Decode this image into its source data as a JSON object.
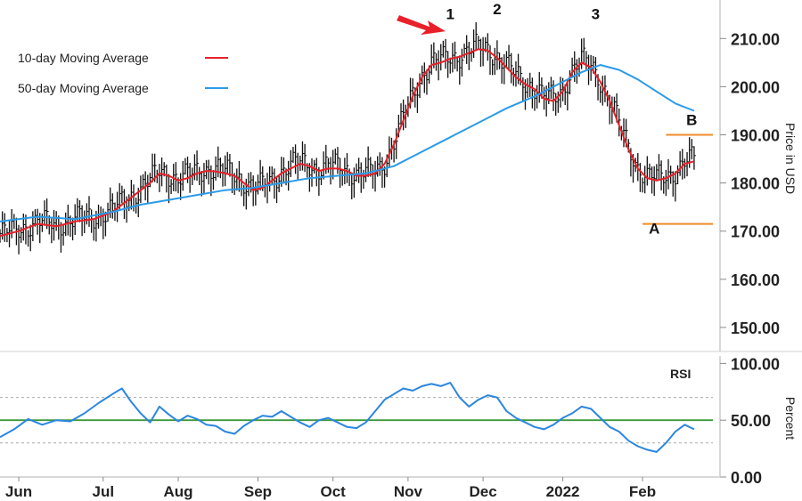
{
  "chart_data": [
    {
      "type": "line",
      "title": "",
      "ylabel": "Price in USD",
      "ylim": [
        145,
        218
      ],
      "yticks": [
        "210.00",
        "200.00",
        "190.00",
        "180.00",
        "170.00",
        "160.00",
        "150.00"
      ],
      "xticks": [
        "Jun",
        "Jul",
        "Aug",
        "Sep",
        "Oct",
        "Nov",
        "Dec",
        "2022",
        "Feb"
      ],
      "legend": "top-left",
      "series": [
        {
          "name": "10-day Moving Average",
          "color": "#e8202a",
          "points": [
            [
              0,
              169
            ],
            [
              4,
              170
            ],
            [
              8,
              171.5
            ],
            [
              12,
              171
            ],
            [
              16,
              172
            ],
            [
              20,
              172.5
            ],
            [
              24,
              174
            ],
            [
              28,
              177
            ],
            [
              32,
              180
            ],
            [
              34,
              182
            ],
            [
              36,
              181.5
            ],
            [
              38,
              180.5
            ],
            [
              40,
              181
            ],
            [
              42,
              182
            ],
            [
              44,
              182.5
            ],
            [
              46,
              182.4
            ],
            [
              48,
              182
            ],
            [
              50,
              181.5
            ],
            [
              52,
              180
            ],
            [
              54,
              178.5
            ],
            [
              56,
              179
            ],
            [
              58,
              180.5
            ],
            [
              60,
              182
            ],
            [
              62,
              183
            ],
            [
              64,
              184
            ],
            [
              66,
              183.5
            ],
            [
              68,
              182.5
            ],
            [
              70,
              183
            ],
            [
              72,
              183
            ],
            [
              74,
              182.5
            ],
            [
              76,
              181.5
            ],
            [
              78,
              181.5
            ],
            [
              80,
              182
            ],
            [
              82,
              184
            ],
            [
              84,
              188
            ],
            [
              86,
              193
            ],
            [
              88,
              198
            ],
            [
              90,
              202
            ],
            [
              92,
              204.5
            ],
            [
              94,
              205
            ],
            [
              96,
              205.8
            ],
            [
              98,
              206.2
            ],
            [
              100,
              207
            ],
            [
              102,
              207.8
            ],
            [
              104,
              207.5
            ],
            [
              106,
              206
            ],
            [
              108,
              204
            ],
            [
              110,
              202
            ],
            [
              112,
              200.5
            ],
            [
              114,
              199.5
            ],
            [
              116,
              197.5
            ],
            [
              118,
              197
            ],
            [
              120,
              199
            ],
            [
              122,
              203
            ],
            [
              124,
              205
            ],
            [
              126,
              204
            ],
            [
              128,
              201
            ],
            [
              130,
              197
            ],
            [
              132,
              192
            ],
            [
              134,
              187
            ],
            [
              136,
              183
            ],
            [
              138,
              181
            ],
            [
              140,
              180.5
            ],
            [
              142,
              181
            ],
            [
              144,
              182
            ],
            [
              146,
              184
            ],
            [
              148,
              184.5
            ]
          ]
        },
        {
          "name": "50-day Moving Average",
          "color": "#2b9be8",
          "points": [
            [
              0,
              172
            ],
            [
              8,
              173
            ],
            [
              16,
              172.5
            ],
            [
              24,
              174
            ],
            [
              30,
              175.5
            ],
            [
              36,
              176.5
            ],
            [
              42,
              177.5
            ],
            [
              48,
              178.5
            ],
            [
              54,
              179
            ],
            [
              60,
              180
            ],
            [
              66,
              181
            ],
            [
              72,
              181.5
            ],
            [
              78,
              182
            ],
            [
              84,
              183.5
            ],
            [
              90,
              186.5
            ],
            [
              96,
              189.5
            ],
            [
              102,
              192.5
            ],
            [
              108,
              195.5
            ],
            [
              114,
              198
            ],
            [
              120,
              201
            ],
            [
              124,
              203
            ],
            [
              128,
              204.5
            ],
            [
              132,
              203.5
            ],
            [
              136,
              201.5
            ],
            [
              140,
              199
            ],
            [
              144,
              196.5
            ],
            [
              148,
              195
            ]
          ]
        }
      ],
      "annotations": [
        {
          "label": "1",
          "x": 96,
          "y": 214
        },
        {
          "label": "2",
          "x": 106,
          "y": 215
        },
        {
          "label": "3",
          "x": 127,
          "y": 214
        },
        {
          "label": "A",
          "x": 139.5,
          "y": 169.5
        },
        {
          "label": "B",
          "x": 147.5,
          "y": 192
        }
      ],
      "reference_lines": [
        {
          "y": 190,
          "x_from": 142,
          "x_to": 152,
          "color": "#f08c2a"
        },
        {
          "y": 171.5,
          "x_from": 137,
          "x_to": 152,
          "color": "#f08c2a"
        }
      ],
      "arrow": {
        "x": 95,
        "y": 211.5,
        "color": "#e8202a"
      }
    },
    {
      "type": "line",
      "title": "RSI",
      "ylabel": "Percent",
      "ylim": [
        0,
        105
      ],
      "yticks": [
        "100.00",
        "50.00",
        "0.00"
      ],
      "reference_lines": [
        {
          "y": 50,
          "color": "#3a9a3a"
        },
        {
          "y": 70,
          "color": "#aaaaaa"
        },
        {
          "y": 30,
          "color": "#aaaaaa"
        }
      ],
      "series": [
        {
          "name": "RSI",
          "color": "#2b86e0",
          "points": [
            [
              0,
              35
            ],
            [
              3,
              42
            ],
            [
              6,
              51
            ],
            [
              9,
              46
            ],
            [
              12,
              50
            ],
            [
              15,
              49
            ],
            [
              18,
              56
            ],
            [
              21,
              65
            ],
            [
              24,
              73
            ],
            [
              26,
              78
            ],
            [
              28,
              66
            ],
            [
              30,
              56
            ],
            [
              32,
              48
            ],
            [
              34,
              62
            ],
            [
              36,
              55
            ],
            [
              38,
              49
            ],
            [
              40,
              54
            ],
            [
              42,
              51
            ],
            [
              44,
              46
            ],
            [
              46,
              45
            ],
            [
              48,
              40
            ],
            [
              50,
              38
            ],
            [
              52,
              45
            ],
            [
              54,
              50
            ],
            [
              56,
              54
            ],
            [
              58,
              53
            ],
            [
              60,
              58
            ],
            [
              62,
              53
            ],
            [
              64,
              48
            ],
            [
              66,
              44
            ],
            [
              68,
              50
            ],
            [
              70,
              52
            ],
            [
              72,
              48
            ],
            [
              74,
              44
            ],
            [
              76,
              43
            ],
            [
              78,
              48
            ],
            [
              80,
              58
            ],
            [
              82,
              68
            ],
            [
              84,
              73
            ],
            [
              86,
              78
            ],
            [
              88,
              76
            ],
            [
              90,
              80
            ],
            [
              92,
              82
            ],
            [
              94,
              80
            ],
            [
              96,
              83
            ],
            [
              98,
              70
            ],
            [
              100,
              62
            ],
            [
              102,
              68
            ],
            [
              104,
              72
            ],
            [
              106,
              70
            ],
            [
              108,
              58
            ],
            [
              110,
              52
            ],
            [
              112,
              48
            ],
            [
              114,
              44
            ],
            [
              116,
              42
            ],
            [
              118,
              46
            ],
            [
              120,
              52
            ],
            [
              122,
              56
            ],
            [
              124,
              62
            ],
            [
              126,
              60
            ],
            [
              128,
              52
            ],
            [
              130,
              44
            ],
            [
              132,
              40
            ],
            [
              134,
              32
            ],
            [
              136,
              27
            ],
            [
              138,
              24
            ],
            [
              140,
              22
            ],
            [
              142,
              30
            ],
            [
              144,
              40
            ],
            [
              146,
              46
            ],
            [
              148,
              42
            ]
          ]
        }
      ]
    }
  ]
}
